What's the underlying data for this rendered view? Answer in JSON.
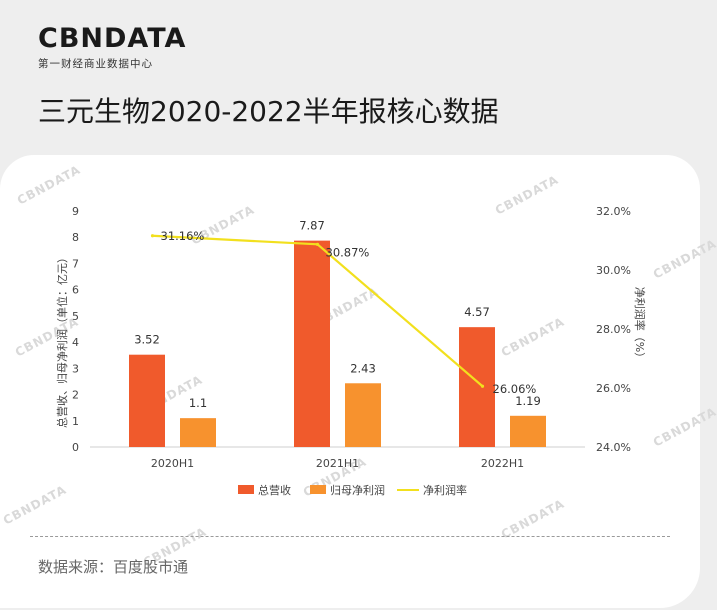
{
  "brand": {
    "logo": "CBNDATA",
    "tagline": "第一财经商业数据中心",
    "watermark": "CBNDATA"
  },
  "page_title": "三元生物2020-2022半年报核心数据",
  "source": "数据来源：百度股市通",
  "colors": {
    "revenue": "#f05a2c",
    "net_profit": "#f7922e",
    "margin_line": "#f2e01e"
  },
  "chart_data": {
    "type": "bar",
    "categories": [
      "2020H1",
      "2021H1",
      "2022H1"
    ],
    "series": [
      {
        "name": "总营收",
        "type": "bar",
        "axis": "left",
        "values": [
          3.52,
          7.87,
          4.57
        ],
        "labels": [
          "3.52",
          "7.87",
          "4.57"
        ]
      },
      {
        "name": "归母净利润",
        "type": "bar",
        "axis": "left",
        "values": [
          1.1,
          2.43,
          1.19
        ],
        "labels": [
          "1.1",
          "2.43",
          "1.19"
        ]
      },
      {
        "name": "净利润率",
        "type": "line",
        "axis": "right",
        "values": [
          31.16,
          30.87,
          26.06
        ],
        "labels": [
          "31.16%",
          "30.87%",
          "26.06%"
        ]
      }
    ],
    "ylabel": "总营收、归母净利润（单位：亿元）",
    "y2label": "净利润率（%）",
    "ylim": [
      0,
      9
    ],
    "yticks": [
      "0",
      "1",
      "2",
      "3",
      "4",
      "5",
      "6",
      "7",
      "8",
      "9"
    ],
    "y2lim": [
      24,
      32
    ],
    "y2ticks": [
      "24.0%",
      "26.0%",
      "28.0%",
      "30.0%",
      "32.0%"
    ],
    "grid": false,
    "legend_position": "bottom"
  }
}
